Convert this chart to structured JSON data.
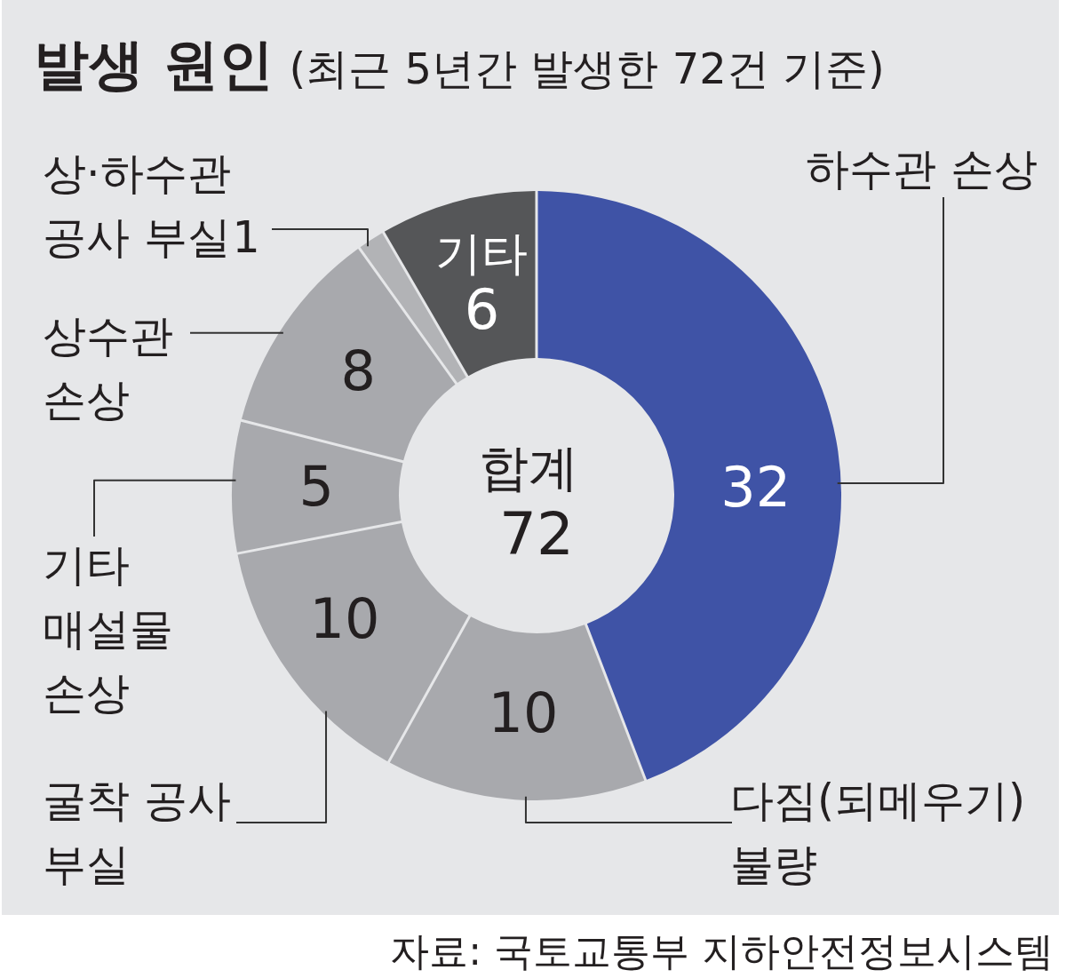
{
  "chart_data": {
    "type": "donut",
    "title": "발생 원인",
    "subtitle": "(최근 5년간 발생한 72건 기준)",
    "categories": [
      "하수관 손상",
      "다짐(되메우기) 불량",
      "굴착 공사 부실",
      "기타 매설물 손상",
      "상수관 손상",
      "상·하수관 공사 부실",
      "기타"
    ],
    "values": [
      32,
      10,
      10,
      5,
      8,
      1,
      6
    ],
    "colors": [
      "#3f53a6",
      "#a8a9ad",
      "#a8a9ad",
      "#a8a9ad",
      "#a8a9ad",
      "#b2b3b6",
      "#555658"
    ],
    "data_labels": true,
    "annotations": [
      "합계 72",
      "자료: 국토교통부 지하안전정보시스템"
    ]
  }
}
